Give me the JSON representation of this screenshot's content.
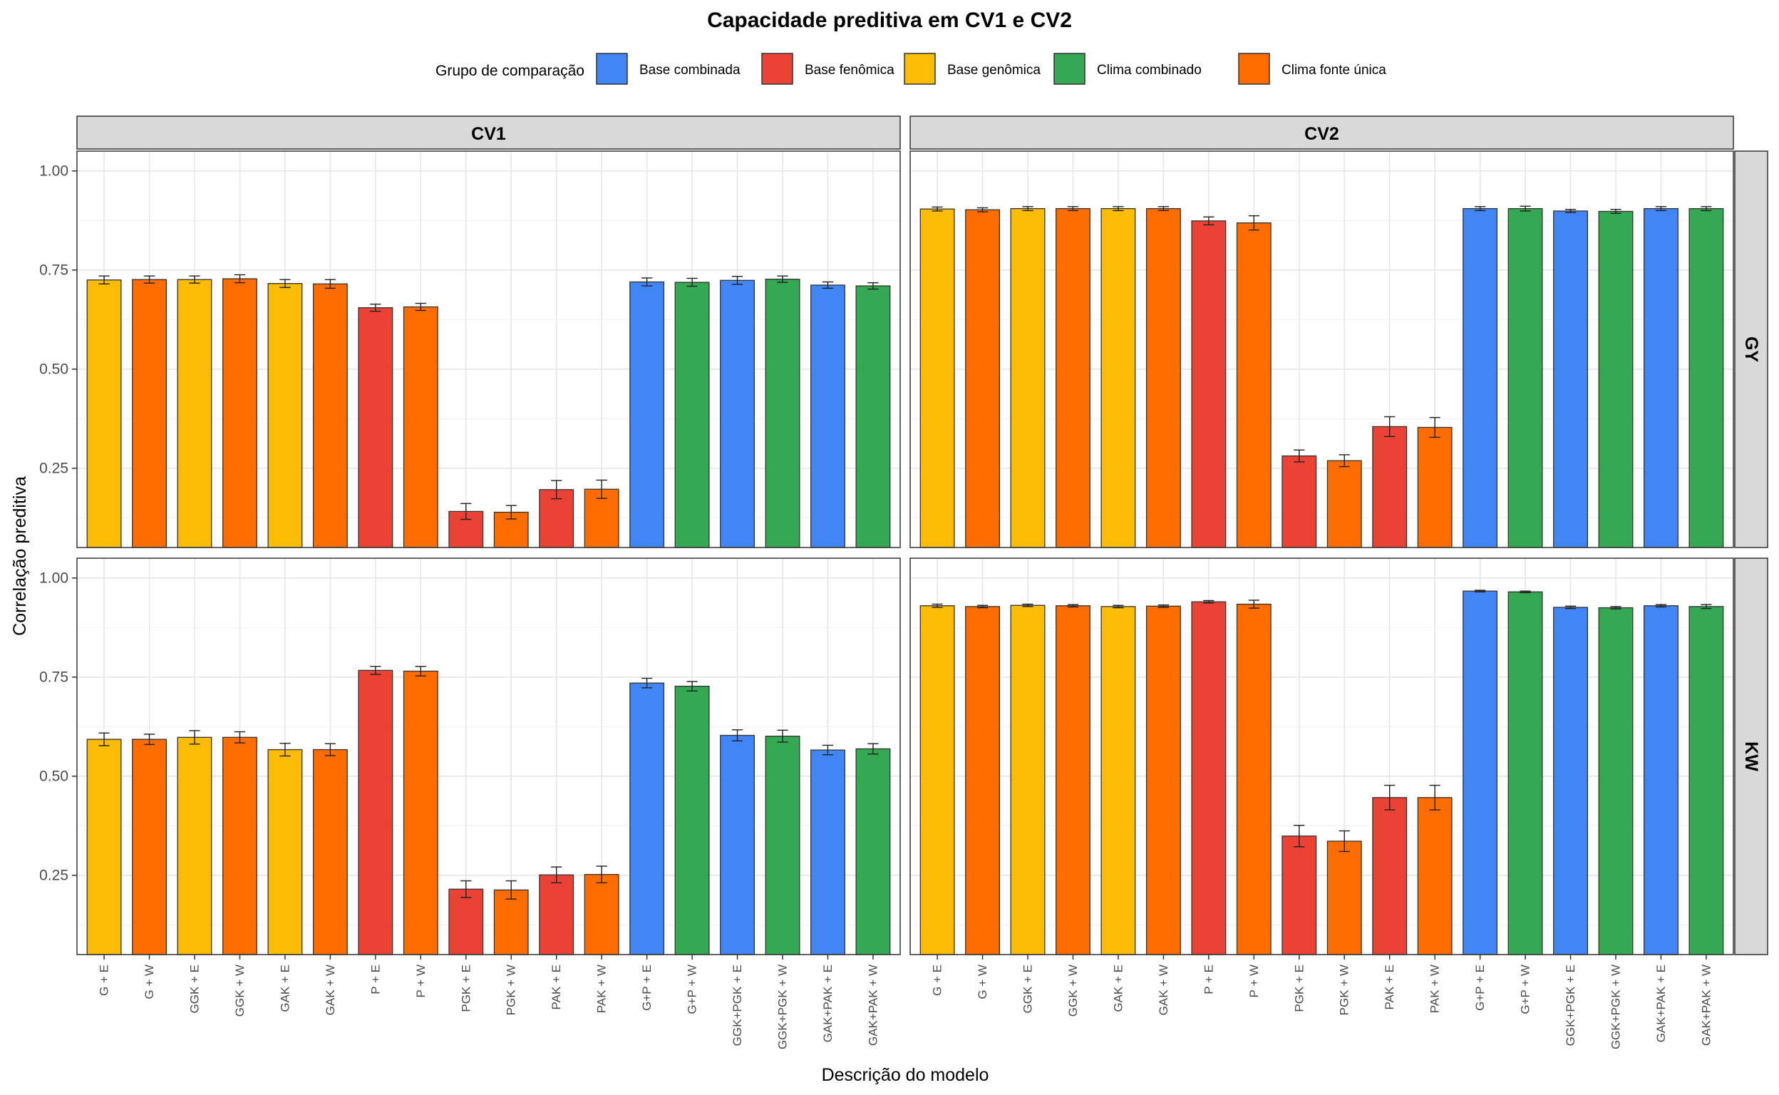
{
  "chart_data": {
    "type": "bar",
    "title": "Capacidade preditiva em CV1 e CV2",
    "xlabel": "Descrição do modelo",
    "ylabel": "Correlação preditiva",
    "ylim": [
      0.05,
      1.05
    ],
    "yticks": [
      0.25,
      0.5,
      0.75,
      1.0
    ],
    "ytick_labels": [
      "0.25",
      "0.50",
      "0.75",
      "1.00"
    ],
    "grid": true,
    "legend": {
      "title": "Grupo de comparação",
      "position": "top",
      "items": [
        {
          "key": "bc",
          "label": "Base combinada",
          "color": "#4285F4"
        },
        {
          "key": "bf",
          "label": "Base fenômica",
          "color": "#EA4335"
        },
        {
          "key": "bg",
          "label": "Base genômica",
          "color": "#FBBC05"
        },
        {
          "key": "cc",
          "label": "Clima combinado",
          "color": "#34A853"
        },
        {
          "key": "cf",
          "label": "Clima fonte única",
          "color": "#FF6D01"
        }
      ]
    },
    "col_facets": [
      "CV1",
      "CV2"
    ],
    "row_facets": [
      "GY",
      "KW"
    ],
    "categories": [
      "G + E",
      "G + W",
      "GGK + E",
      "GGK + W",
      "GAK + E",
      "GAK + W",
      "P + E",
      "P + W",
      "PGK + E",
      "PGK + W",
      "PAK + E",
      "PAK + W",
      "G+P + E",
      "G+P + W",
      "GGK+PGK + E",
      "GGK+PGK + W",
      "GAK+PAK + E",
      "GAK+PAK + W"
    ],
    "groups": [
      "bg",
      "cf",
      "bg",
      "cf",
      "bg",
      "cf",
      "bf",
      "cf",
      "bf",
      "cf",
      "bf",
      "cf",
      "bc",
      "cc",
      "bc",
      "cc",
      "bc",
      "cc"
    ],
    "panels": [
      {
        "row": "GY",
        "col": "CV1",
        "values": [
          0.725,
          0.726,
          0.726,
          0.728,
          0.716,
          0.715,
          0.655,
          0.657,
          0.141,
          0.139,
          0.196,
          0.197,
          0.72,
          0.719,
          0.724,
          0.727,
          0.712,
          0.71
        ],
        "errors": [
          0.01,
          0.009,
          0.009,
          0.01,
          0.01,
          0.011,
          0.009,
          0.009,
          0.02,
          0.017,
          0.023,
          0.023,
          0.01,
          0.01,
          0.01,
          0.008,
          0.008,
          0.008
        ]
      },
      {
        "row": "GY",
        "col": "CV2",
        "values": [
          0.904,
          0.902,
          0.905,
          0.905,
          0.905,
          0.905,
          0.874,
          0.869,
          0.281,
          0.269,
          0.355,
          0.353,
          0.905,
          0.905,
          0.899,
          0.898,
          0.905,
          0.905
        ],
        "errors": [
          0.005,
          0.005,
          0.005,
          0.005,
          0.005,
          0.005,
          0.01,
          0.018,
          0.015,
          0.015,
          0.025,
          0.025,
          0.005,
          0.006,
          0.004,
          0.005,
          0.005,
          0.005
        ]
      },
      {
        "row": "KW",
        "col": "CV1",
        "values": [
          0.593,
          0.593,
          0.598,
          0.598,
          0.567,
          0.567,
          0.767,
          0.765,
          0.215,
          0.213,
          0.251,
          0.252,
          0.735,
          0.727,
          0.603,
          0.601,
          0.566,
          0.569
        ],
        "errors": [
          0.016,
          0.013,
          0.017,
          0.014,
          0.016,
          0.015,
          0.01,
          0.012,
          0.021,
          0.023,
          0.02,
          0.021,
          0.012,
          0.012,
          0.014,
          0.015,
          0.012,
          0.013
        ]
      },
      {
        "row": "KW",
        "col": "CV2",
        "values": [
          0.93,
          0.928,
          0.931,
          0.93,
          0.928,
          0.929,
          0.94,
          0.934,
          0.349,
          0.336,
          0.446,
          0.446,
          0.967,
          0.965,
          0.926,
          0.925,
          0.93,
          0.928
        ],
        "errors": [
          0.004,
          0.003,
          0.003,
          0.003,
          0.003,
          0.003,
          0.003,
          0.01,
          0.027,
          0.026,
          0.031,
          0.031,
          0.002,
          0.002,
          0.003,
          0.003,
          0.003,
          0.005
        ]
      }
    ]
  }
}
